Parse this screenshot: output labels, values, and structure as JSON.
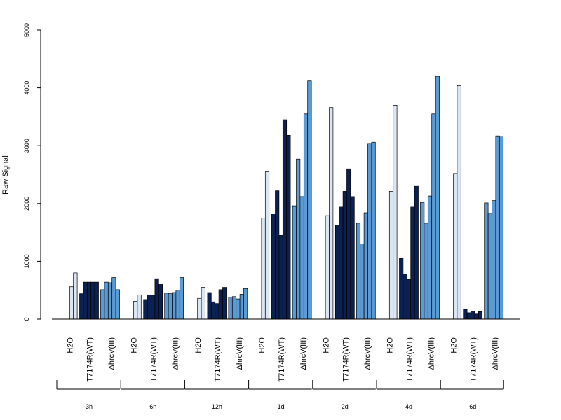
{
  "chart_data": {
    "type": "bar",
    "ylabel": "Raw Signal",
    "ylim": [
      0,
      5000
    ],
    "yticks": [
      0,
      1000,
      2000,
      3000,
      4000,
      5000
    ],
    "grid": false,
    "legend": "none",
    "colors": {
      "H2O": "#dce6f2",
      "T7174R(WT)": "#0b2152",
      "ΔhrcV(III)": "#5b9bd5"
    },
    "timepoints": [
      "3h",
      "6h",
      "12h",
      "1d",
      "2d",
      "4d",
      "6d"
    ],
    "groups": [
      {
        "time": "3h",
        "series": [
          {
            "name": "H2O",
            "values": [
              0,
              0,
              560,
              800
            ]
          },
          {
            "name": "T7174R(WT)",
            "values": [
              440,
              640,
              640,
              640,
              640
            ]
          },
          {
            "name": "ΔhrcV(III)",
            "values": [
              510,
              640,
              630,
              720,
              510
            ]
          }
        ]
      },
      {
        "time": "6h",
        "series": [
          {
            "name": "H2O",
            "values": [
              0,
              0,
              310,
              420
            ]
          },
          {
            "name": "T7174R(WT)",
            "values": [
              340,
              420,
              420,
              700,
              600
            ]
          },
          {
            "name": "ΔhrcV(III)",
            "values": [
              450,
              440,
              460,
              500,
              720
            ]
          }
        ]
      },
      {
        "time": "12h",
        "series": [
          {
            "name": "H2O",
            "values": [
              0,
              0,
              360,
              550
            ]
          },
          {
            "name": "T7174R(WT)",
            "values": [
              460,
              300,
              270,
              510,
              550
            ]
          },
          {
            "name": "ΔhrcV(III)",
            "values": [
              380,
              390,
              350,
              430,
              530
            ]
          }
        ]
      },
      {
        "time": "1d",
        "series": [
          {
            "name": "H2O",
            "values": [
              0,
              0,
              1750,
              2560
            ]
          },
          {
            "name": "T7174R(WT)",
            "values": [
              1820,
              2220,
              1450,
              3450,
              3180
            ]
          },
          {
            "name": "ΔhrcV(III)",
            "values": [
              1960,
              2770,
              2120,
              3550,
              4120
            ]
          }
        ]
      },
      {
        "time": "2d",
        "series": [
          {
            "name": "H2O",
            "values": [
              0,
              0,
              1790,
              3660
            ]
          },
          {
            "name": "T7174R(WT)",
            "values": [
              1630,
              1950,
              2210,
              2600,
              2120
            ]
          },
          {
            "name": "ΔhrcV(III)",
            "values": [
              1660,
              1300,
              1840,
              3040,
              3060
            ]
          }
        ]
      },
      {
        "time": "4d",
        "series": [
          {
            "name": "H2O",
            "values": [
              0,
              0,
              2210,
              3700
            ]
          },
          {
            "name": "T7174R(WT)",
            "values": [
              1050,
              780,
              690,
              1950,
              2310
            ]
          },
          {
            "name": "ΔhrcV(III)",
            "values": [
              2020,
              1660,
              2130,
              3550,
              4200
            ]
          }
        ]
      },
      {
        "time": "6d",
        "series": [
          {
            "name": "H2O",
            "values": [
              0,
              0,
              2520,
              4040
            ]
          },
          {
            "name": "T7174R(WT)",
            "values": [
              170,
              110,
              140,
              100,
              130
            ]
          },
          {
            "name": "ΔhrcV(III)",
            "values": [
              2010,
              1830,
              2050,
              3170,
              3160
            ]
          }
        ]
      }
    ]
  }
}
